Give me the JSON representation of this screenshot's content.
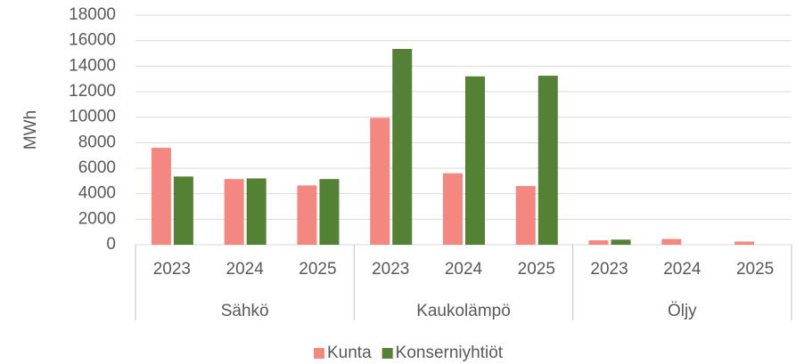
{
  "chart_data": {
    "type": "bar",
    "y_label": "MWh",
    "categories": [
      "2023",
      "2024",
      "2025",
      "2023",
      "2024",
      "2025",
      "2023",
      "2024",
      "2025"
    ],
    "groups": [
      "Sähkö",
      "Kaukolämpö",
      "Öljy"
    ],
    "series": [
      {
        "name": "Kunta",
        "color": "#f4877f",
        "values": [
          7600,
          5150,
          4650,
          9950,
          5600,
          4600,
          350,
          450,
          250
        ]
      },
      {
        "name": "Konserniyhtiöt",
        "color": "#548235",
        "values": [
          5350,
          5200,
          5150,
          15350,
          13200,
          13250,
          400,
          0,
          0
        ]
      }
    ],
    "ylim": [
      0,
      18000
    ],
    "yticks": [
      0,
      2000,
      4000,
      6000,
      8000,
      10000,
      12000,
      14000,
      16000,
      18000
    ],
    "grid": true,
    "legend": "bottom"
  }
}
